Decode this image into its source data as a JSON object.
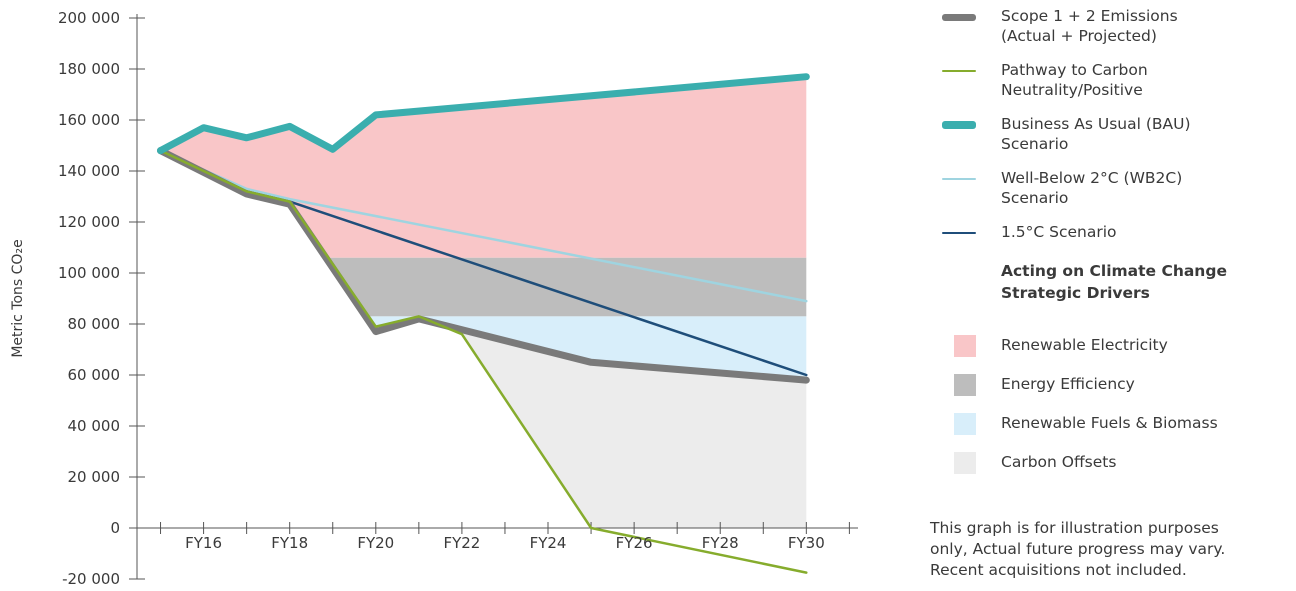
{
  "chart_data": {
    "type": "line",
    "ylabel": "Metric Tons CO₂e",
    "ylim": [
      -20000,
      200000
    ],
    "yticks": [
      200000,
      180000,
      160000,
      140000,
      120000,
      100000,
      80000,
      60000,
      40000,
      20000,
      0,
      -20000
    ],
    "ytick_labels": [
      "200 000",
      "180 000",
      "160 000",
      "140 000",
      "120 000",
      "100 000",
      "80 000",
      "60 000",
      "40 000",
      "20 000",
      "0",
      "-20 000"
    ],
    "x_labels": [
      "FY16",
      "FY18",
      "FY20",
      "FY22",
      "FY24",
      "FY26",
      "FY28",
      "FY30"
    ],
    "x_label_years": [
      2016,
      2018,
      2020,
      2022,
      2024,
      2026,
      2028,
      2030
    ],
    "xlim": [
      2014.5,
      2031.2
    ],
    "series": [
      {
        "name": "Scope 1 + 2 Emissions (Actual + Projected)",
        "color": "#7a7a7a",
        "width": 7,
        "x": [
          2015,
          2017,
          2018,
          2020,
          2021,
          2025,
          2030
        ],
        "y": [
          148000,
          131000,
          127000,
          77000,
          82000,
          65000,
          58000
        ]
      },
      {
        "name": "Pathway to Carbon Neutrality/Positive",
        "color": "#86ac2d",
        "width": 2.5,
        "x": [
          2015,
          2017,
          2018,
          2020,
          2021,
          2022,
          2025,
          2030
        ],
        "y": [
          148000,
          132000,
          128000,
          79000,
          83000,
          76000,
          0,
          -17500
        ]
      },
      {
        "name": "Business As Usual (BAU) Scenario",
        "color": "#3aaeae",
        "width": 7,
        "x": [
          2015,
          2016,
          2017,
          2018,
          2019,
          2020,
          2030
        ],
        "y": [
          148000,
          157000,
          153000,
          157500,
          148500,
          162000,
          177000
        ]
      },
      {
        "name": "Well-Below 2°C (WB2C) Scenario",
        "color": "#9fd4e0",
        "width": 2.5,
        "x": [
          2015,
          2017,
          2018,
          2030
        ],
        "y": [
          148000,
          133000,
          129000,
          89000
        ]
      },
      {
        "name": "1.5°C Scenario",
        "color": "#1f4e7a",
        "width": 2.5,
        "x": [
          2015,
          2017,
          2018,
          2030
        ],
        "y": [
          148000,
          132000,
          128000,
          60000
        ]
      }
    ],
    "areas": [
      {
        "name": "Renewable Electricity",
        "color": "#f9c6c8"
      },
      {
        "name": "Energy Efficiency",
        "color": "#bdbdbd"
      },
      {
        "name": "Renewable Fuels & Biomass",
        "color": "#d8eefa"
      },
      {
        "name": "Carbon Offsets",
        "color": "#ececec"
      }
    ],
    "area_levels": {
      "energy_efficiency_top": 106000,
      "renewable_fuels_top": 83000
    },
    "legend_placement": "right",
    "grid": false
  },
  "legend": {
    "lines": [
      {
        "label": "Scope 1 + 2 Emissions\n(Actual + Projected)",
        "color": "#7a7a7a",
        "thickness": 7
      },
      {
        "label": "Pathway to Carbon\nNeutrality/Positive",
        "color": "#86ac2d",
        "thickness": 2
      },
      {
        "label": "Business As Usual (BAU)\nScenario",
        "color": "#3aaeae",
        "thickness": 8
      },
      {
        "label": "Well-Below 2°C (WB2C)\nScenario",
        "color": "#9fd4e0",
        "thickness": 2
      },
      {
        "label": "1.5°C Scenario",
        "color": "#1f4e7a",
        "thickness": 2
      }
    ],
    "drivers_heading": "Acting on Climate Change\nStrategic Drivers",
    "drivers": [
      {
        "label": "Renewable Electricity",
        "color": "#f9c6c8"
      },
      {
        "label": "Energy Efficiency",
        "color": "#bdbdbd"
      },
      {
        "label": "Renewable Fuels & Biomass",
        "color": "#d8eefa"
      },
      {
        "label": "Carbon Offsets",
        "color": "#ececec"
      }
    ]
  },
  "note": "This graph is for illustration purposes\nonly, Actual future progress may vary.\nRecent acquisitions not included."
}
